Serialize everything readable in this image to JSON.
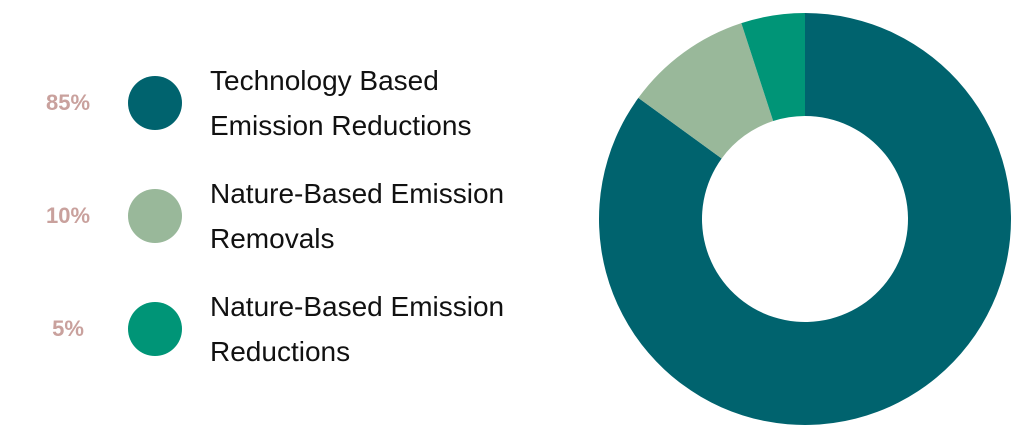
{
  "chart_data": {
    "type": "donut",
    "categories": [
      "Technology Based\nEmission Reductions",
      "Nature-Based Emission\nRemovals",
      "Nature-Based Emission\nReductions"
    ],
    "values": [
      85,
      10,
      5
    ],
    "value_labels": [
      "85%",
      "10%",
      "5%"
    ],
    "colors": [
      "#00636e",
      "#99b89a",
      "#009577"
    ]
  }
}
